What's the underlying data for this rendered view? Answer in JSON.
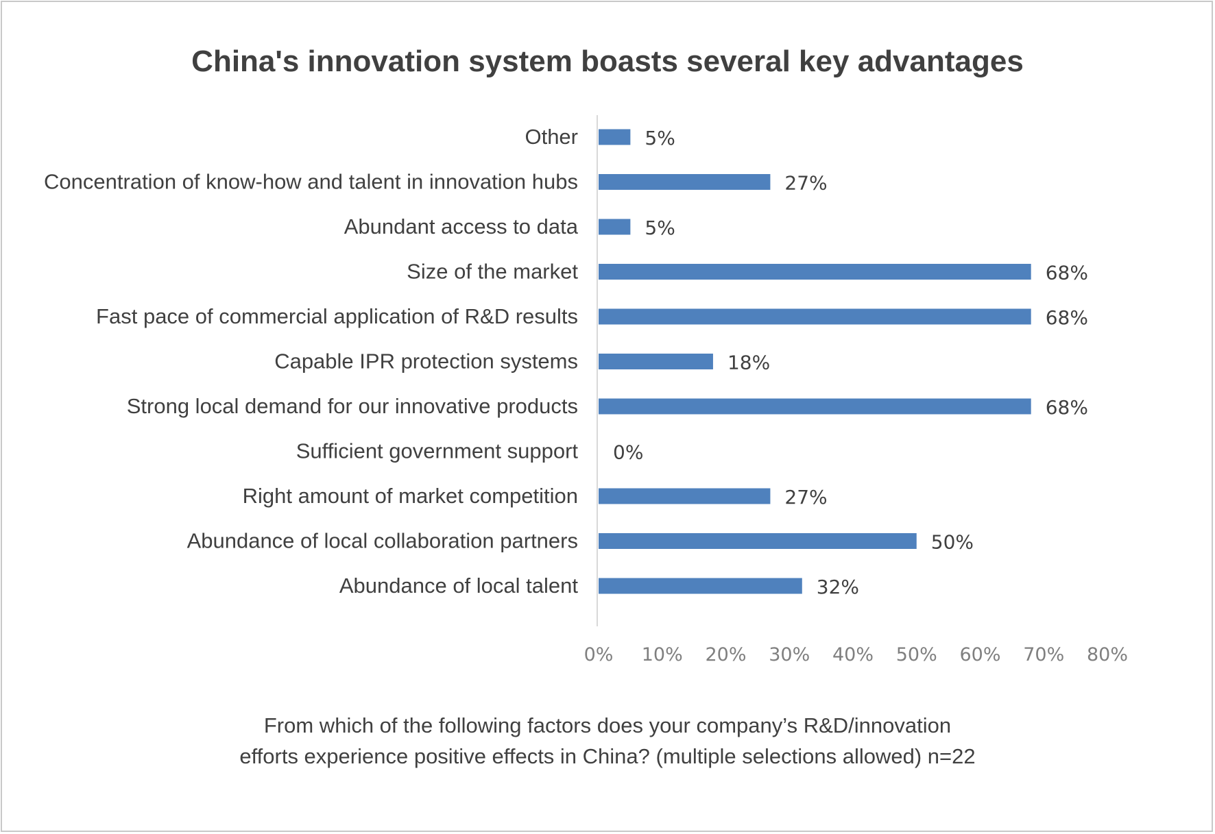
{
  "chart_data": {
    "type": "bar",
    "orientation": "horizontal",
    "title": "China's innovation system boasts several key advantages",
    "categories": [
      "Other",
      "Concentration of know-how and talent in innovation hubs",
      "Abundant access to data",
      "Size of the market",
      "Fast pace of commercial application of R&D results",
      "Capable IPR protection systems",
      "Strong local demand for our innovative products",
      "Sufficient government support",
      "Right amount of market competition",
      "Abundance of local collaboration partners",
      "Abundance of local talent"
    ],
    "values": [
      5,
      27,
      5,
      68,
      68,
      18,
      68,
      0,
      27,
      50,
      32
    ],
    "value_labels": [
      "5%",
      "27%",
      "5%",
      "68%",
      "68%",
      "18%",
      "68%",
      "0%",
      "27%",
      "50%",
      "32%"
    ],
    "xlim": [
      0,
      80
    ],
    "xticks": [
      "0%",
      "10%",
      "20%",
      "30%",
      "40%",
      "50%",
      "60%",
      "70%",
      "80%"
    ],
    "xlabel": "",
    "ylabel": "",
    "grid": false,
    "footnote_lines": [
      "From which of the following factors does your company’s R&D/innovation",
      "efforts experience positive effects in China? (multiple selections allowed) n=22"
    ],
    "bar_color": "#4f81bd",
    "text_color": "#404040",
    "tick_color": "#7f7f7f"
  }
}
